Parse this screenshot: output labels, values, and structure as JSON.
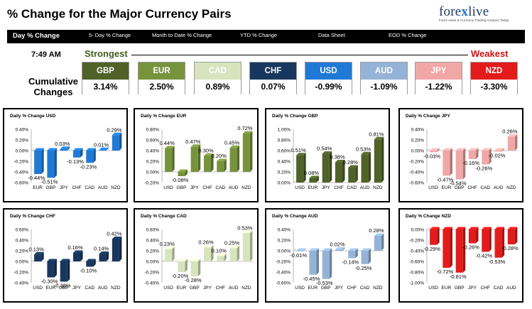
{
  "header": {
    "title": "% Change for the Major Currency Pairs",
    "logo_main": "fore",
    "logo_x": "x",
    "logo_end": "live",
    "logo_tagline": "Forex news & Currency Trading Analysis Today"
  },
  "menu": {
    "items": [
      "Day % Change",
      "5- Day % Change",
      "Month to Date % Change",
      "YTD % Change",
      "Data Sheet",
      "EOD % Change"
    ]
  },
  "summary": {
    "time": "7:49 AM",
    "strongest": "Strongest",
    "weakest": "Weakest",
    "cumulative_line1": "Cumulative",
    "cumulative_line2": "Changes",
    "currencies": [
      {
        "name": "GBP",
        "value": "3.14%",
        "color": "#4f6228"
      },
      {
        "name": "EUR",
        "value": "2.50%",
        "color": "#77933c"
      },
      {
        "name": "CAD",
        "value": "0.89%",
        "color": "#d7e4bd"
      },
      {
        "name": "CHF",
        "value": "0.07%",
        "color": "#17375e"
      },
      {
        "name": "USD",
        "value": "-0.99%",
        "color": "#1f7ad6"
      },
      {
        "name": "AUD",
        "value": "-1.09%",
        "color": "#95b3d7"
      },
      {
        "name": "JPY",
        "value": "-1.22%",
        "color": "#f2a7a7"
      },
      {
        "name": "NZD",
        "value": "-3.30%",
        "color": "#e41b1b"
      }
    ]
  },
  "chart_data": [
    {
      "type": "bar",
      "title": "Daily % Change USD",
      "categories": [
        "EUR",
        "GBP",
        "JPY",
        "CHF",
        "CAD",
        "AUD",
        "NZD"
      ],
      "values": [
        -0.44,
        -0.51,
        0.03,
        -0.13,
        -0.23,
        0.01,
        0.29
      ],
      "labels": [
        "-0.44%",
        "-0.51%",
        "0.03%",
        "-0.13%",
        "-0.23%",
        "0.01%",
        "0.29%"
      ],
      "yticks": [
        "0.40%",
        "0.20%",
        "0.00%",
        "-0.20%",
        "-0.40%",
        "-0.60%"
      ],
      "ylim": [
        -0.6,
        0.4
      ],
      "color": "#1f7ad6"
    },
    {
      "type": "bar",
      "title": "Daily % Change EUR",
      "categories": [
        "USD",
        "GBP",
        "JPY",
        "CHF",
        "CAD",
        "AUD",
        "NZD"
      ],
      "values": [
        0.44,
        -0.08,
        0.47,
        0.3,
        0.2,
        0.45,
        0.72
      ],
      "labels": [
        "0.44%",
        "-0.08%",
        "0.47%",
        "0.30%",
        "0.20%",
        "0.45%",
        "0.72%"
      ],
      "yticks": [
        "0.80%",
        "0.60%",
        "0.40%",
        "0.20%",
        "0.00%",
        "-0.20%"
      ],
      "ylim": [
        -0.2,
        0.8
      ],
      "color": "#77933c"
    },
    {
      "type": "bar",
      "title": "Daily % Change GBP",
      "categories": [
        "USD",
        "EUR",
        "JPY",
        "CHF",
        "CAD",
        "AUD",
        "NZD"
      ],
      "values": [
        0.51,
        0.08,
        0.54,
        0.38,
        0.28,
        0.53,
        0.81
      ],
      "labels": [
        "0.51%",
        "0.08%",
        "0.54%",
        "0.38%",
        "0.28%",
        "0.53%",
        "0.81%"
      ],
      "yticks": [
        "1.00%",
        "0.80%",
        "0.60%",
        "0.40%",
        "0.20%",
        "0.00%"
      ],
      "ylim": [
        0,
        1
      ],
      "color": "#4f6228"
    },
    {
      "type": "bar",
      "title": "Daily % Change JPY",
      "categories": [
        "USD",
        "EUR",
        "GBP",
        "CHF",
        "CAD",
        "AUD",
        "NZD"
      ],
      "values": [
        -0.03,
        -0.47,
        -0.54,
        -0.16,
        -0.26,
        -0.02,
        0.26
      ],
      "labels": [
        "-0.03%",
        "-0.47%",
        "-0.54%",
        "-0.16%",
        "-0.26%",
        "-0.02%",
        "0.26%"
      ],
      "yticks": [
        "0.40%",
        "0.20%",
        "0.00%",
        "-0.20%",
        "-0.40%",
        "-0.60%"
      ],
      "ylim": [
        -0.6,
        0.4
      ],
      "color": "#f2a7a7"
    },
    {
      "type": "bar",
      "title": "Daily % Change CHF",
      "categories": [
        "USD",
        "EUR",
        "GBP",
        "JPY",
        "CAD",
        "AUD",
        "NZD"
      ],
      "values": [
        0.13,
        -0.3,
        -0.38,
        0.16,
        -0.1,
        0.14,
        0.42
      ],
      "labels": [
        "0.13%",
        "-0.30%",
        "-0.38%",
        "0.16%",
        "-0.10%",
        "0.14%",
        "0.42%"
      ],
      "yticks": [
        "0.60%",
        "0.40%",
        "0.20%",
        "0.00%",
        "-0.20%",
        "-0.40%"
      ],
      "ylim": [
        -0.4,
        0.6
      ],
      "color": "#17375e"
    },
    {
      "type": "bar",
      "title": "Daily % Change CAD",
      "categories": [
        "USD",
        "EUR",
        "GBP",
        "JPY",
        "CHF",
        "AUD",
        "NZD"
      ],
      "values": [
        0.23,
        -0.2,
        -0.28,
        0.26,
        0.1,
        0.25,
        0.53
      ],
      "labels": [
        "0.23%",
        "-0.20%",
        "-0.28%",
        "0.26%",
        "0.10%",
        "0.25%",
        "0.53%"
      ],
      "yticks": [
        "0.60%",
        "0.40%",
        "0.20%",
        "0.00%",
        "-0.20%",
        "-0.40%"
      ],
      "ylim": [
        -0.4,
        0.6
      ],
      "color": "#d7e4bd"
    },
    {
      "type": "bar",
      "title": "Daily % Change AUD",
      "categories": [
        "USD",
        "EUR",
        "GBP",
        "JPY",
        "CHF",
        "CAD",
        "NZD"
      ],
      "values": [
        -0.01,
        -0.45,
        -0.53,
        0.02,
        -0.14,
        -0.25,
        0.28
      ],
      "labels": [
        "-0.01%",
        "-0.45%",
        "-0.53%",
        "0.02%",
        "-0.14%",
        "-0.25%",
        "0.28%"
      ],
      "yticks": [
        "0.40%",
        "0.20%",
        "0.00%",
        "-0.20%",
        "-0.40%",
        "-0.60%"
      ],
      "ylim": [
        -0.6,
        0.4
      ],
      "color": "#95b3d7"
    },
    {
      "type": "bar",
      "title": "Daily % Change NZD",
      "categories": [
        "USD",
        "EUR",
        "GBP",
        "JPY",
        "CHF",
        "CAD",
        "AUD"
      ],
      "values": [
        -0.29,
        -0.72,
        -0.81,
        -0.26,
        -0.42,
        -0.53,
        -0.28
      ],
      "labels": [
        "-0.29%",
        "-0.72%",
        "-0.81%",
        "-0.26%",
        "-0.42%",
        "-0.53%",
        "-0.28%"
      ],
      "yticks": [
        "0.00%",
        "-0.20%",
        "-0.40%",
        "-0.60%",
        "-0.80%",
        "-1.00%"
      ],
      "ylim": [
        -1,
        0
      ],
      "color": "#e41b1b"
    }
  ]
}
